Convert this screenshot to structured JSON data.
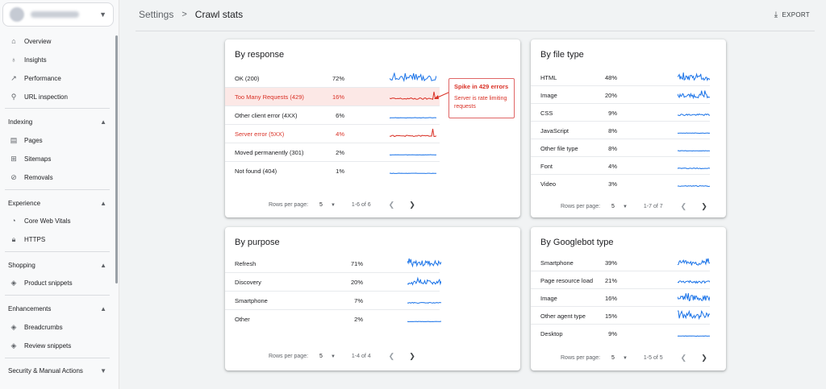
{
  "sidebar": {
    "items_top": [
      {
        "label": "Overview",
        "icon": "home-icon"
      },
      {
        "label": "Insights",
        "icon": "lightbulb-icon"
      },
      {
        "label": "Performance",
        "icon": "trending-icon"
      },
      {
        "label": "URL inspection",
        "icon": "search-icon"
      }
    ],
    "indexing": {
      "title": "Indexing",
      "items": [
        {
          "label": "Pages",
          "icon": "page-icon"
        },
        {
          "label": "Sitemaps",
          "icon": "sitemap-icon"
        },
        {
          "label": "Removals",
          "icon": "eye-off-icon"
        }
      ]
    },
    "experience": {
      "title": "Experience",
      "items": [
        {
          "label": "Core Web Vitals",
          "icon": "gauge-icon"
        },
        {
          "label": "HTTPS",
          "icon": "lock-icon"
        }
      ]
    },
    "shopping": {
      "title": "Shopping",
      "items": [
        {
          "label": "Product snippets",
          "icon": "diamond-icon"
        }
      ]
    },
    "enhancements": {
      "title": "Enhancements",
      "items": [
        {
          "label": "Breadcrumbs",
          "icon": "diamond-icon"
        },
        {
          "label": "Review snippets",
          "icon": "diamond-icon"
        }
      ]
    },
    "security": {
      "title": "Security & Manual Actions"
    }
  },
  "header": {
    "crumb_parent": "Settings",
    "crumb_current": "Crawl stats",
    "export_label": "EXPORT"
  },
  "cards": {
    "response": {
      "title": "By response",
      "rows": [
        {
          "label": "OK (200)",
          "pct": "72%"
        },
        {
          "label": "Too Many Requests (429)",
          "pct": "16%"
        },
        {
          "label": "Other client error (4XX)",
          "pct": "6%"
        },
        {
          "label": "Server error (5XX)",
          "pct": "4%"
        },
        {
          "label": "Moved permanently (301)",
          "pct": "2%"
        },
        {
          "label": "Not found (404)",
          "pct": "1%"
        }
      ],
      "rows_per_page_label": "Rows per page:",
      "rows_per_page": "5",
      "range": "1-6 of 6"
    },
    "filetype": {
      "title": "By file type",
      "rows": [
        {
          "label": "HTML",
          "pct": "48%"
        },
        {
          "label": "Image",
          "pct": "20%"
        },
        {
          "label": "CSS",
          "pct": "9%"
        },
        {
          "label": "JavaScript",
          "pct": "8%"
        },
        {
          "label": "Other file type",
          "pct": "8%"
        },
        {
          "label": "Font",
          "pct": "4%"
        },
        {
          "label": "Video",
          "pct": "3%"
        }
      ],
      "rows_per_page_label": "Rows per page:",
      "rows_per_page": "5",
      "range": "1-7 of 7"
    },
    "purpose": {
      "title": "By purpose",
      "rows": [
        {
          "label": "Refresh",
          "pct": "71%"
        },
        {
          "label": "Discovery",
          "pct": "20%"
        },
        {
          "label": "Smartphone",
          "pct": "7%"
        },
        {
          "label": "Other",
          "pct": "2%"
        }
      ],
      "rows_per_page_label": "Rows per page:",
      "rows_per_page": "5",
      "range": "1-4 of 4"
    },
    "googlebot": {
      "title": "By Googlebot type",
      "rows": [
        {
          "label": "Smartphone",
          "pct": "39%"
        },
        {
          "label": "Page resource load",
          "pct": "21%"
        },
        {
          "label": "Image",
          "pct": "16%"
        },
        {
          "label": "Other agent type",
          "pct": "15%"
        },
        {
          "label": "Desktop",
          "pct": "9%"
        }
      ],
      "rows_per_page_label": "Rows per page:",
      "rows_per_page": "5",
      "range": "1-5 of 5"
    }
  },
  "callout": {
    "title": "Spike in 429 errors",
    "detail": "Server is rate limiting requests"
  },
  "colors": {
    "spark_blue": "#1a73e8",
    "spark_red": "#d93025",
    "highlight": "#fce8e6"
  }
}
